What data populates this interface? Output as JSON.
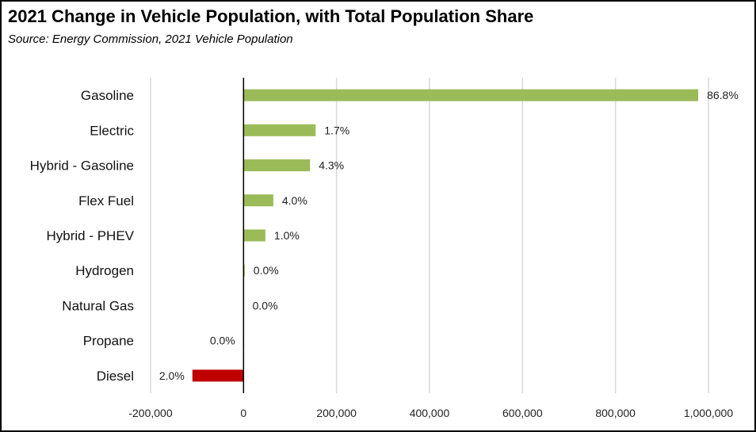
{
  "title": "2021 Change in Vehicle Population, with Total Population Share",
  "subtitle": "Source:  Energy Commission, 2021 Vehicle Population",
  "chart_data": {
    "type": "bar",
    "orientation": "horizontal",
    "title": "2021 Change in Vehicle Population, with Total Population Share",
    "subtitle": "Source:  Energy Commission, 2021 Vehicle Population",
    "categories": [
      "Gasoline",
      "Electric",
      "Hybrid - Gasoline",
      "Flex Fuel",
      "Hybrid - PHEV",
      "Hydrogen",
      "Natural Gas",
      "Propane",
      "Diesel"
    ],
    "values": [
      978000,
      155000,
      143000,
      64000,
      47000,
      2500,
      500,
      -1000,
      -110000
    ],
    "data_labels": [
      "86.8%",
      "1.7%",
      "4.3%",
      "4.0%",
      "1.0%",
      "0.0%",
      "0.0%",
      "0.0%",
      "2.0%"
    ],
    "xlim": [
      -200000,
      1000000
    ],
    "xticks": [
      -200000,
      0,
      200000,
      400000,
      600000,
      800000,
      1000000
    ],
    "xtick_labels": [
      "-200,000",
      "0",
      "200,000",
      "400,000",
      "600,000",
      "800,000",
      "1,000,000"
    ],
    "grid": true,
    "colors": {
      "positive": "#9bbb59",
      "negative": "#c00000",
      "grid": "#d9d9d9",
      "axis": "#000000"
    }
  }
}
